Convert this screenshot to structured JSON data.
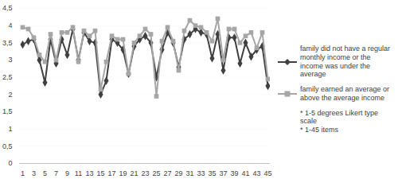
{
  "chart_data": {
    "type": "line",
    "categories": [
      1,
      null,
      3,
      null,
      5,
      null,
      7,
      null,
      9,
      null,
      11,
      null,
      13,
      null,
      15,
      null,
      17,
      null,
      19,
      null,
      21,
      null,
      23,
      null,
      25,
      null,
      27,
      null,
      29,
      null,
      31,
      null,
      33,
      null,
      35,
      null,
      37,
      null,
      39,
      null,
      41,
      null,
      43,
      null,
      45
    ],
    "series": [
      {
        "name": "family did not have a regular monthly income or the income was under the average",
        "color": "#404040",
        "marker": "diamond",
        "values": [
          3.45,
          3.55,
          3.6,
          3.0,
          2.35,
          3.6,
          2.9,
          3.6,
          3.15,
          3.9,
          3.0,
          3.8,
          3.55,
          3.5,
          2.0,
          2.4,
          3.6,
          3.5,
          3.3,
          2.6,
          3.4,
          3.6,
          3.7,
          3.5,
          2.5,
          3.3,
          3.8,
          3.5,
          2.8,
          3.6,
          3.75,
          3.9,
          3.8,
          3.75,
          3.05,
          3.75,
          2.7,
          3.65,
          3.65,
          2.9,
          3.5,
          3.1,
          3.3,
          3.4,
          2.25
        ]
      },
      {
        "name": "family earned an average or above the average income",
        "color": "#a6a6a6",
        "marker": "square",
        "values": [
          3.95,
          3.9,
          3.65,
          3.15,
          2.95,
          3.75,
          3.0,
          3.8,
          3.8,
          3.95,
          2.95,
          3.85,
          3.7,
          3.85,
          2.15,
          2.95,
          3.7,
          3.6,
          3.6,
          2.6,
          3.5,
          3.7,
          3.9,
          3.75,
          1.95,
          3.55,
          3.95,
          3.55,
          2.7,
          3.85,
          4.15,
          4.0,
          3.95,
          3.8,
          3.55,
          4.2,
          3.0,
          3.9,
          3.9,
          3.5,
          3.7,
          3.8,
          3.35,
          3.8,
          2.45
        ]
      }
    ],
    "annotations": [
      "* 1-5 degrees Likert type scale",
      "* 1-45 items"
    ],
    "ylim": [
      0,
      4.5
    ],
    "yticks": [
      0,
      {
        "value": 0.5,
        "label": "0,5"
      },
      1,
      {
        "value": 1.5,
        "label": "1,5"
      },
      2,
      {
        "value": 2.5,
        "label": "2,5"
      },
      3,
      {
        "value": 3.5,
        "label": "3,5"
      },
      4,
      {
        "value": 4.5,
        "label": "4,5"
      }
    ],
    "grid": true,
    "legend": "right"
  }
}
